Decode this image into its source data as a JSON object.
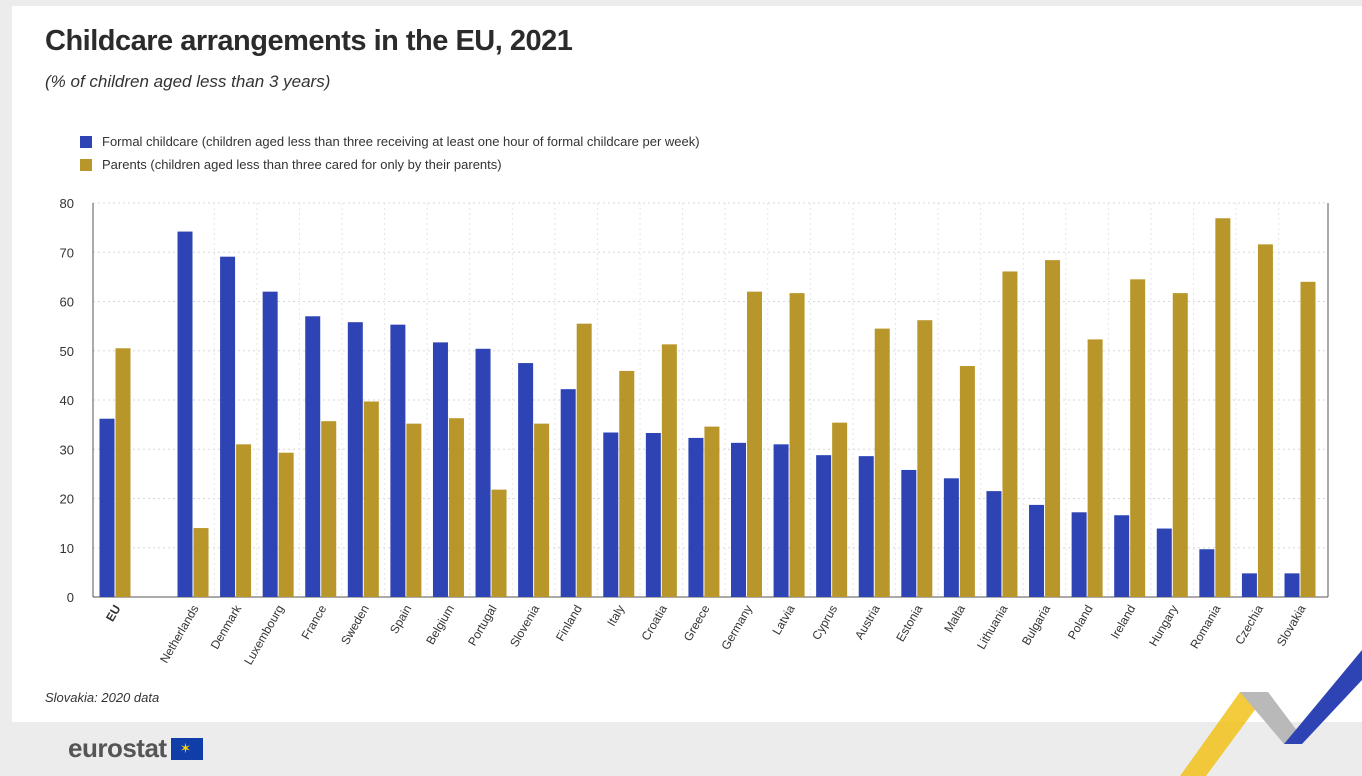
{
  "title": "Childcare arrangements in the EU, 2021",
  "subtitle": "(% of children aged less than 3 years)",
  "footnote": "Slovakia: 2020 data",
  "logo": {
    "text": "eurostat",
    "icon": "eu-flag-icon"
  },
  "colors": {
    "formal": "#2e44b4",
    "parents": "#b8962a",
    "grid": "#d8d8d8"
  },
  "chart_data": {
    "type": "bar",
    "title": "Childcare arrangements in the EU, 2021",
    "subtitle": "(% of children aged less than 3 years)",
    "xlabel": "",
    "ylabel": "",
    "ylim": [
      0,
      80
    ],
    "yticks": [
      0,
      10,
      20,
      30,
      40,
      50,
      60,
      70,
      80
    ],
    "grid": true,
    "legend_position": "top-left",
    "categories": [
      "EU",
      "Netherlands",
      "Denmark",
      "Luxembourg",
      "France",
      "Sweden",
      "Spain",
      "Belgium",
      "Portugal",
      "Slovenia",
      "Finland",
      "Italy",
      "Croatia",
      "Greece",
      "Germany",
      "Latvia",
      "Cyprus",
      "Austria",
      "Estonia",
      "Malta",
      "Lithuania",
      "Bulgaria",
      "Poland",
      "Ireland",
      "Hungary",
      "Romania",
      "Czechia",
      "Slovakia"
    ],
    "series": [
      {
        "name": "Formal childcare (children aged less than three receiving at least one hour of formal childcare per week)",
        "values": [
          36.2,
          74.2,
          69.1,
          62.0,
          57.0,
          55.8,
          55.3,
          51.7,
          50.4,
          47.5,
          42.2,
          33.4,
          33.3,
          32.3,
          31.3,
          31.0,
          28.8,
          28.6,
          25.8,
          24.1,
          21.5,
          18.7,
          17.2,
          16.6,
          13.9,
          9.7,
          4.8,
          4.8
        ]
      },
      {
        "name": "Parents (children aged less than three cared for only by their parents)",
        "values": [
          50.5,
          14.0,
          31.0,
          29.3,
          35.7,
          39.7,
          35.2,
          36.3,
          21.8,
          35.2,
          55.5,
          45.9,
          51.3,
          34.6,
          62.0,
          61.7,
          35.4,
          54.5,
          56.2,
          46.9,
          66.1,
          68.4,
          52.3,
          64.5,
          61.7,
          76.9,
          71.6,
          64.0
        ]
      }
    ]
  }
}
